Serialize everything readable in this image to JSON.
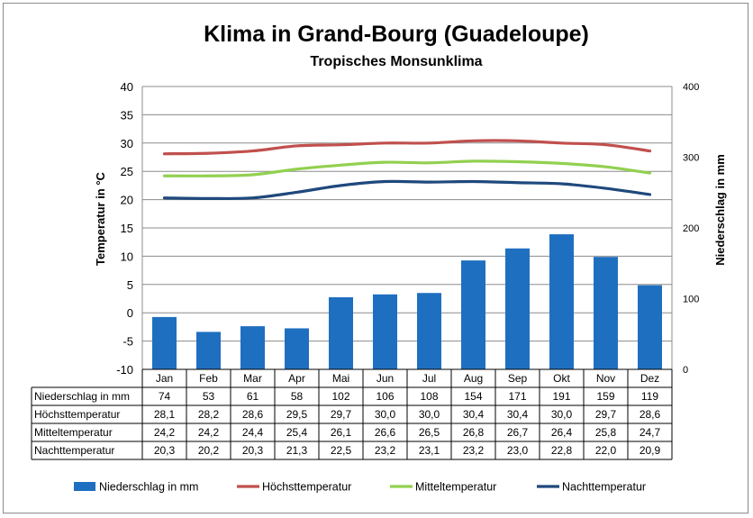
{
  "chart_data": {
    "type": "bar+line",
    "title": "Klima in Grand-Bourg (Guadeloupe)",
    "subtitle": "Tropisches Monsunklima",
    "ylabel_left": "Temperatur in °C",
    "ylabel_right": "Niederschlag in mm",
    "ylim_left": [
      -10,
      40
    ],
    "yticks_left": [
      "40",
      "35",
      "30",
      "25",
      "20",
      "15",
      "10",
      "5",
      "0",
      "-5",
      "-10"
    ],
    "ylim_right": [
      0,
      400
    ],
    "yticks_right": [
      "400",
      "300",
      "200",
      "100",
      "0"
    ],
    "grid": true,
    "categories": [
      "Jan",
      "Feb",
      "Mar",
      "Apr",
      "Mai",
      "Jun",
      "Jul",
      "Aug",
      "Sep",
      "Okt",
      "Nov",
      "Dez"
    ],
    "legend_position": "bottom",
    "series": [
      {
        "name": "Niederschlag in mm",
        "kind": "bar",
        "axis": "right",
        "color": "#1f6fc0",
        "values": [
          74,
          53,
          61,
          58,
          102,
          106,
          108,
          154,
          171,
          191,
          159,
          119
        ],
        "labels": [
          "74",
          "53",
          "61",
          "58",
          "102",
          "106",
          "108",
          "154",
          "171",
          "191",
          "159",
          "119"
        ]
      },
      {
        "name": "Höchsttemperatur",
        "kind": "line",
        "axis": "left",
        "color": "#c0504d",
        "values": [
          28.1,
          28.2,
          28.6,
          29.5,
          29.7,
          30.0,
          30.0,
          30.4,
          30.4,
          30.0,
          29.7,
          28.6
        ],
        "labels": [
          "28,1",
          "28,2",
          "28,6",
          "29,5",
          "29,7",
          "30,0",
          "30,0",
          "30,4",
          "30,4",
          "30,0",
          "29,7",
          "28,6"
        ]
      },
      {
        "name": "Mitteltemperatur",
        "kind": "line",
        "axis": "left",
        "color": "#92d050",
        "values": [
          24.2,
          24.2,
          24.4,
          25.4,
          26.1,
          26.6,
          26.5,
          26.8,
          26.7,
          26.4,
          25.8,
          24.7
        ],
        "labels": [
          "24,2",
          "24,2",
          "24,4",
          "25,4",
          "26,1",
          "26,6",
          "26,5",
          "26,8",
          "26,7",
          "26,4",
          "25,8",
          "24,7"
        ]
      },
      {
        "name": "Nachttemperatur",
        "kind": "line",
        "axis": "left",
        "color": "#1f497d",
        "values": [
          20.3,
          20.2,
          20.3,
          21.3,
          22.5,
          23.2,
          23.1,
          23.2,
          23.0,
          22.8,
          22.0,
          20.9
        ],
        "labels": [
          "20,3",
          "20,2",
          "20,3",
          "21,3",
          "22,5",
          "23,2",
          "23,1",
          "23,2",
          "23,0",
          "22,8",
          "22,0",
          "20,9"
        ]
      }
    ]
  }
}
